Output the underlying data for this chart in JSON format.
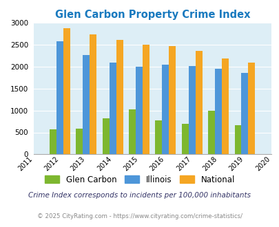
{
  "title": "Glen Carbon Property Crime Index",
  "data_years": [
    2012,
    2013,
    2014,
    2015,
    2016,
    2017,
    2018,
    2019
  ],
  "glen_carbon": [
    570,
    590,
    820,
    1030,
    780,
    700,
    1000,
    660
  ],
  "illinois": [
    2580,
    2270,
    2090,
    2000,
    2050,
    2020,
    1950,
    1850
  ],
  "national": [
    2870,
    2740,
    2610,
    2500,
    2470,
    2360,
    2190,
    2090
  ],
  "glen_carbon_color": "#7db72f",
  "illinois_color": "#4d96d9",
  "national_color": "#f5a623",
  "background_color": "#ddeef6",
  "title_color": "#1a7abf",
  "ylim": [
    0,
    3000
  ],
  "yticks": [
    0,
    500,
    1000,
    1500,
    2000,
    2500,
    3000
  ],
  "bar_width": 0.26,
  "footnote1": "Crime Index corresponds to incidents per 100,000 inhabitants",
  "footnote2": "© 2025 CityRating.com - https://www.cityrating.com/crime-statistics/",
  "legend_labels": [
    "Glen Carbon",
    "Illinois",
    "National"
  ],
  "xtick_labels": [
    "2011",
    "2012",
    "2013",
    "2014",
    "2015",
    "2016",
    "2017",
    "2018",
    "2019",
    "2020"
  ]
}
